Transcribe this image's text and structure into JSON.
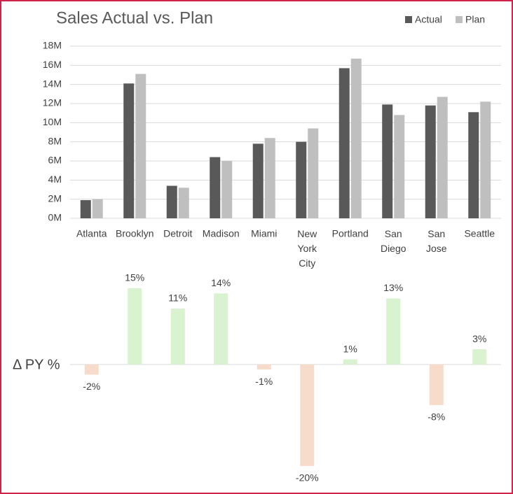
{
  "chart_data": [
    {
      "type": "bar",
      "title": "Sales Actual vs. Plan",
      "categories": [
        "Atlanta",
        "Brooklyn",
        "Detroit",
        "Madison",
        "Miami",
        "New York City",
        "Portland",
        "San Diego",
        "San Jose",
        "Seattle"
      ],
      "series": [
        {
          "name": "Actual",
          "color": "#595959",
          "values": [
            1900000,
            14100000,
            3400000,
            6400000,
            7800000,
            8000000,
            15700000,
            11900000,
            11800000,
            11100000
          ]
        },
        {
          "name": "Plan",
          "color": "#bfbfbf",
          "values": [
            2000000,
            15100000,
            3200000,
            6000000,
            8400000,
            9400000,
            16700000,
            10800000,
            12700000,
            12200000
          ]
        }
      ],
      "ylim": [
        0,
        18000000
      ],
      "yticks": [
        {
          "value": 0,
          "label": "0M"
        },
        {
          "value": 2000000,
          "label": "2M"
        },
        {
          "value": 4000000,
          "label": "4M"
        },
        {
          "value": 6000000,
          "label": "6M"
        },
        {
          "value": 8000000,
          "label": "8M"
        },
        {
          "value": 10000000,
          "label": "10M"
        },
        {
          "value": 12000000,
          "label": "12M"
        },
        {
          "value": 14000000,
          "label": "14M"
        },
        {
          "value": 16000000,
          "label": "16M"
        },
        {
          "value": 18000000,
          "label": "18M"
        }
      ],
      "grid": true,
      "legend": "top-right"
    },
    {
      "type": "bar",
      "y_label": "Δ PY %",
      "values": [
        -2,
        15,
        11,
        14,
        -1,
        -20,
        1,
        13,
        -8,
        3
      ],
      "value_labels": [
        "-2%",
        "15%",
        "11%",
        "14%",
        "-1%",
        "-20%",
        "1%",
        "13%",
        "-8%",
        "3%"
      ],
      "positive_color": "#d9f2d0",
      "negative_color": "#f8dccb"
    }
  ]
}
